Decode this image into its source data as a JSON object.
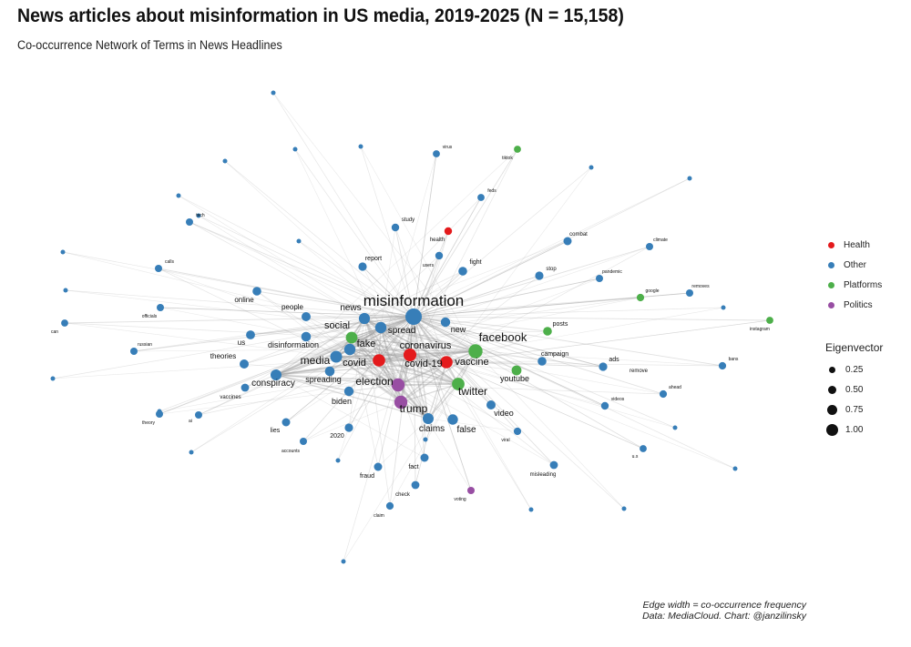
{
  "title": "News articles about misinformation in US media, 2019-2025 (N = 15,158)",
  "subtitle": "Co-occurrence Network of Terms in News Headlines",
  "caption_line1": "Edge width = co-occurrence frequency",
  "caption_line2": "Data: MediaCloud. Chart: @janzilinsky",
  "legend": {
    "category_entries": [
      {
        "label": "Health",
        "color": "#e41a1c"
      },
      {
        "label": "Other",
        "color": "#377eb8"
      },
      {
        "label": "Platforms",
        "color": "#4daf4a"
      },
      {
        "label": "Politics",
        "color": "#984ea3"
      }
    ],
    "size_title": "Eigenvector",
    "size_entries": [
      {
        "label": "0.25",
        "value": 0.25
      },
      {
        "label": "0.50",
        "value": 0.5
      },
      {
        "label": "0.75",
        "value": 0.75
      },
      {
        "label": "1.00",
        "value": 1.0
      }
    ]
  },
  "chart_data": {
    "type": "network",
    "nodes": [
      {
        "id": "misinformation",
        "category": "Other",
        "eigenvector": 1.0
      },
      {
        "id": "facebook",
        "category": "Platforms",
        "eigenvector": 0.8
      },
      {
        "id": "coronavirus",
        "category": "Health",
        "eigenvector": 0.7
      },
      {
        "id": "covid-19",
        "category": "Health",
        "eigenvector": 0.68
      },
      {
        "id": "election",
        "category": "Politics",
        "eigenvector": 0.72
      },
      {
        "id": "trump",
        "category": "Politics",
        "eigenvector": 0.72
      },
      {
        "id": "twitter",
        "category": "Platforms",
        "eigenvector": 0.68
      },
      {
        "id": "vaccine",
        "category": "Health",
        "eigenvector": 0.66
      },
      {
        "id": "covid",
        "category": "Health",
        "eigenvector": 0.66
      },
      {
        "id": "media",
        "category": "Other",
        "eigenvector": 0.62
      },
      {
        "id": "social",
        "category": "Platforms",
        "eigenvector": 0.6
      },
      {
        "id": "fake",
        "category": "Other",
        "eigenvector": 0.58
      },
      {
        "id": "spread",
        "category": "Other",
        "eigenvector": 0.58
      },
      {
        "id": "news",
        "category": "Other",
        "eigenvector": 0.56
      },
      {
        "id": "claims",
        "category": "Other",
        "eigenvector": 0.54
      },
      {
        "id": "conspiracy",
        "category": "Other",
        "eigenvector": 0.54
      },
      {
        "id": "false",
        "category": "Other",
        "eigenvector": 0.5
      },
      {
        "id": "youtube",
        "category": "Platforms",
        "eigenvector": 0.46
      },
      {
        "id": "disinformation",
        "category": "Other",
        "eigenvector": 0.44
      },
      {
        "id": "spreading",
        "category": "Other",
        "eigenvector": 0.44
      },
      {
        "id": "new",
        "category": "Other",
        "eigenvector": 0.42
      },
      {
        "id": "biden",
        "category": "Other",
        "eigenvector": 0.42
      },
      {
        "id": "video",
        "category": "Other",
        "eigenvector": 0.4
      },
      {
        "id": "people",
        "category": "Other",
        "eigenvector": 0.4
      },
      {
        "id": "theories",
        "category": "Other",
        "eigenvector": 0.4
      },
      {
        "id": "us",
        "category": "Other",
        "eigenvector": 0.38
      },
      {
        "id": "online",
        "category": "Other",
        "eigenvector": 0.36
      },
      {
        "id": "campaign",
        "category": "Other",
        "eigenvector": 0.36
      },
      {
        "id": "posts",
        "category": "Platforms",
        "eigenvector": 0.36
      },
      {
        "id": "fight",
        "category": "Other",
        "eigenvector": 0.36
      },
      {
        "id": "report",
        "category": "Other",
        "eigenvector": 0.34
      },
      {
        "id": "stop",
        "category": "Other",
        "eigenvector": 0.34
      },
      {
        "id": "ads",
        "category": "Other",
        "eigenvector": 0.34
      },
      {
        "id": "remove",
        "category": "Other",
        "eigenvector": 0.3
      },
      {
        "id": "2020",
        "category": "Other",
        "eigenvector": 0.34
      },
      {
        "id": "lies",
        "category": "Other",
        "eigenvector": 0.32
      },
      {
        "id": "fact",
        "category": "Other",
        "eigenvector": 0.32
      },
      {
        "id": "check",
        "category": "Other",
        "eigenvector": 0.3
      },
      {
        "id": "fraud",
        "category": "Other",
        "eigenvector": 0.32
      },
      {
        "id": "vaccines",
        "category": "Other",
        "eigenvector": 0.3
      },
      {
        "id": "combat",
        "category": "Other",
        "eigenvector": 0.32
      },
      {
        "id": "health",
        "category": "Health",
        "eigenvector": 0.28
      },
      {
        "id": "study",
        "category": "Other",
        "eigenvector": 0.28
      },
      {
        "id": "users",
        "category": "Other",
        "eigenvector": 0.28
      },
      {
        "id": "misleading",
        "category": "Other",
        "eigenvector": 0.3
      },
      {
        "id": "videos",
        "category": "Other",
        "eigenvector": 0.28
      },
      {
        "id": "ahead",
        "category": "Other",
        "eigenvector": 0.26
      },
      {
        "id": "bans",
        "category": "Other",
        "eigenvector": 0.26
      },
      {
        "id": "google",
        "category": "Platforms",
        "eigenvector": 0.26
      },
      {
        "id": "removes",
        "category": "Other",
        "eigenvector": 0.24
      },
      {
        "id": "pandemic",
        "category": "Other",
        "eigenvector": 0.24
      },
      {
        "id": "climate",
        "category": "Other",
        "eigenvector": 0.24
      },
      {
        "id": "instagram",
        "category": "Platforms",
        "eigenvector": 0.22
      },
      {
        "id": "viral",
        "category": "Other",
        "eigenvector": 0.26
      },
      {
        "id": "claim",
        "category": "Other",
        "eigenvector": 0.26
      },
      {
        "id": "voting",
        "category": "Politics",
        "eigenvector": 0.24
      },
      {
        "id": "accounts",
        "category": "Other",
        "eigenvector": 0.24
      },
      {
        "id": "ai",
        "category": "Other",
        "eigenvector": 0.24
      },
      {
        "id": "theory",
        "category": "Other",
        "eigenvector": 0.24
      },
      {
        "id": "russian",
        "category": "Other",
        "eigenvector": 0.24
      },
      {
        "id": "officials",
        "category": "Other",
        "eigenvector": 0.24
      },
      {
        "id": "calls",
        "category": "Other",
        "eigenvector": 0.24
      },
      {
        "id": "tech",
        "category": "Other",
        "eigenvector": 0.24
      },
      {
        "id": "can",
        "category": "Other",
        "eigenvector": 0.22
      },
      {
        "id": "feds",
        "category": "Other",
        "eigenvector": 0.22
      },
      {
        "id": "virus",
        "category": "Other",
        "eigenvector": 0.22
      },
      {
        "id": "tiktok",
        "category": "Platforms",
        "eigenvector": 0.22
      },
      {
        "id": "u.s",
        "category": "Other",
        "eigenvector": 0.22
      }
    ]
  }
}
